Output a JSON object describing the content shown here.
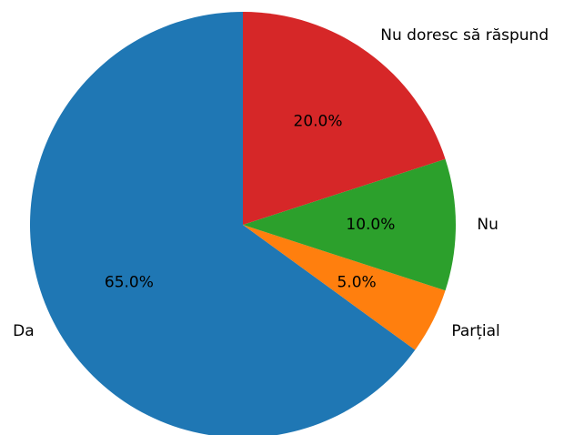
{
  "chart_data": {
    "type": "pie",
    "categories": [
      "Da",
      "Parțial",
      "Nu",
      "Nu doresc să răspund"
    ],
    "values": [
      65,
      5,
      10,
      20
    ],
    "value_labels": [
      "65.0%",
      "5.0%",
      "10.0%",
      "20.0%"
    ],
    "colors": [
      "#1f77b4",
      "#ff7f0e",
      "#2ca02c",
      "#d62728"
    ]
  }
}
